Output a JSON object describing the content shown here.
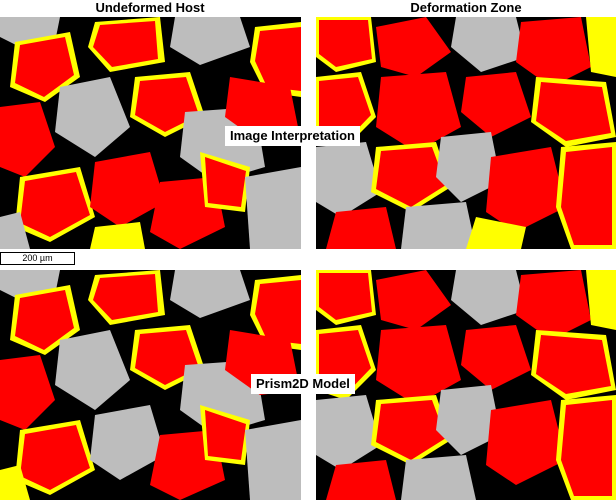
{
  "columns": {
    "left": "Undeformed Host",
    "right": "Deformation Zone"
  },
  "rows": {
    "top": "Image Interpretation",
    "bottom": "Prism2D Model"
  },
  "scale_bar": "200 µm",
  "colors": {
    "grain": "#ff0000",
    "cement": "#ffff00",
    "pore": "#000000",
    "matrix": "#bdbdbd"
  }
}
